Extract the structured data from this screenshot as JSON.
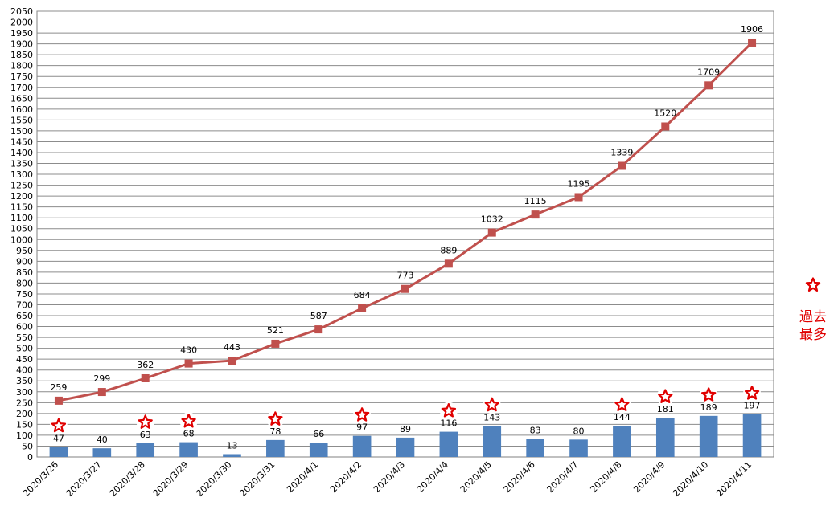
{
  "chart_data": {
    "type": "bar",
    "categories": [
      "2020/3/26",
      "2020/3/27",
      "2020/3/28",
      "2020/3/29",
      "2020/3/30",
      "2020/3/31",
      "2020/4/1",
      "2020/4/2",
      "2020/4/3",
      "2020/4/4",
      "2020/4/5",
      "2020/4/6",
      "2020/4/7",
      "2020/4/8",
      "2020/4/9",
      "2020/4/10",
      "2020/4/11"
    ],
    "series": [
      {
        "type": "bar",
        "values": [
          47,
          40,
          63,
          68,
          13,
          78,
          66,
          97,
          89,
          116,
          143,
          83,
          80,
          144,
          181,
          189,
          197
        ],
        "color": "#4f81bd"
      },
      {
        "type": "line",
        "values": [
          259,
          299,
          362,
          430,
          443,
          521,
          587,
          684,
          773,
          889,
          1032,
          1115,
          1195,
          1339,
          1520,
          1709,
          1906
        ],
        "color": "#c0504d"
      }
    ],
    "record_marker_categories": [
      "2020/3/26",
      "2020/3/28",
      "2020/3/29",
      "2020/3/31",
      "2020/4/2",
      "2020/4/4",
      "2020/4/5",
      "2020/4/8",
      "2020/4/9",
      "2020/4/10",
      "2020/4/11"
    ],
    "marker_icon": "red-star-icon",
    "marker_color": "#e00000",
    "ylim": [
      0,
      2050
    ],
    "ytick_step": 50,
    "grid": true,
    "legend": {
      "position": "right",
      "text": "過去最多"
    }
  }
}
